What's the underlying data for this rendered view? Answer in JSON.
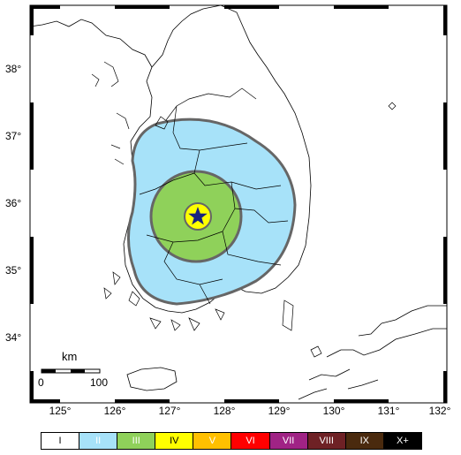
{
  "map": {
    "lon_ticks": [
      "125°",
      "126°",
      "127°",
      "128°",
      "129°",
      "130°",
      "131°",
      "132°"
    ],
    "lat_ticks": [
      "38°",
      "37°",
      "36°",
      "35°",
      "34°"
    ],
    "scale_bar": {
      "unit": "km",
      "start": "0",
      "end": "100"
    },
    "epicenter_icon": "star-icon",
    "intensity_zones": [
      {
        "level": "II",
        "color": "#a7e2f9"
      },
      {
        "level": "III",
        "color": "#8fd15a"
      },
      {
        "level": "IV",
        "color": "#ffff00"
      }
    ],
    "legend": [
      {
        "label": "I",
        "color": "#ffffff",
        "text_color": "#000000"
      },
      {
        "label": "II",
        "color": "#a7e2f9",
        "text_color": "#ffffff"
      },
      {
        "label": "III",
        "color": "#8fd15a",
        "text_color": "#ffffff"
      },
      {
        "label": "IV",
        "color": "#ffff00",
        "text_color": "#000000"
      },
      {
        "label": "V",
        "color": "#ffc000",
        "text_color": "#ffffff"
      },
      {
        "label": "VI",
        "color": "#ff0000",
        "text_color": "#ffffff"
      },
      {
        "label": "VII",
        "color": "#a02385",
        "text_color": "#ffffff"
      },
      {
        "label": "VIII",
        "color": "#6e2125",
        "text_color": "#ffffff"
      },
      {
        "label": "IX",
        "color": "#4a2a0e",
        "text_color": "#ffffff"
      },
      {
        "label": "X+",
        "color": "#000000",
        "text_color": "#ffffff"
      }
    ]
  }
}
